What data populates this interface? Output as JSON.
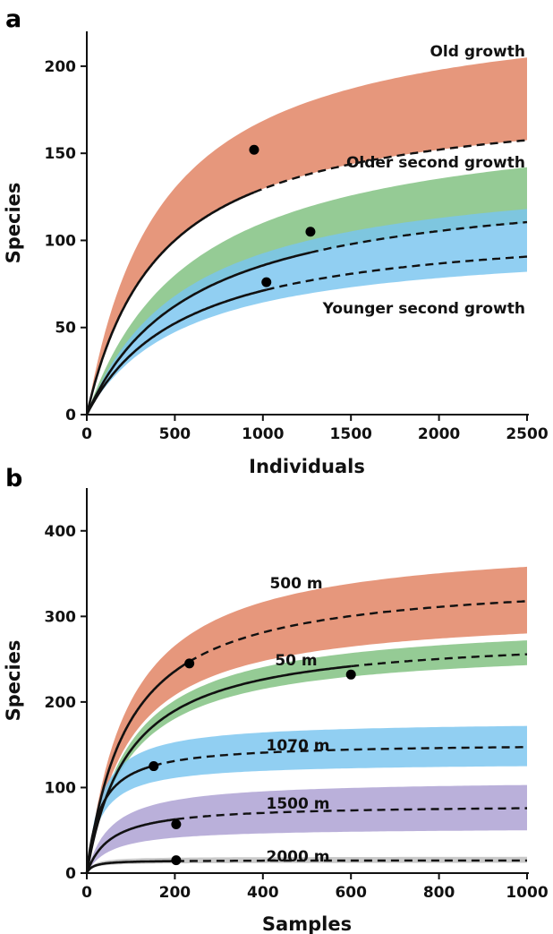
{
  "chart_data": [
    {
      "panel": "a",
      "type": "line",
      "xlabel": "Individuals",
      "ylabel": "Species",
      "xlim": [
        0,
        2500
      ],
      "ylim": [
        0,
        220
      ],
      "xticks": [
        0,
        500,
        1000,
        1500,
        2000,
        2500
      ],
      "yticks": [
        0,
        50,
        100,
        150,
        200
      ],
      "grid": false,
      "series": [
        {
          "name": "Old growth",
          "color": "#e0805f",
          "band_color": "#e0805f",
          "asymptote": 184,
          "k": 420,
          "observed": [
            950,
            152
          ],
          "band": {
            "lower_end": 163,
            "upper_end": 205
          }
        },
        {
          "name": "Older second growth",
          "color": "#7ec07e",
          "band_color": "#7ec07e",
          "asymptote": 137,
          "k": 600,
          "observed": [
            1270,
            105
          ],
          "band": {
            "lower_end": 110,
            "upper_end": 142
          }
        },
        {
          "name": "Younger second growth",
          "color": "#79c4ef",
          "band_color": "#79c4ef",
          "asymptote": 111,
          "k": 560,
          "observed": [
            1020,
            76
          ],
          "band": {
            "lower_end": 82,
            "upper_end": 118
          }
        }
      ]
    },
    {
      "panel": "b",
      "type": "line",
      "xlabel": "Samples",
      "ylabel": "Species",
      "xlim": [
        0,
        1000
      ],
      "ylim": [
        0,
        450
      ],
      "xticks": [
        0,
        200,
        400,
        600,
        800,
        1000
      ],
      "yticks": [
        0,
        100,
        200,
        300,
        400
      ],
      "grid": false,
      "series": [
        {
          "name": "500 m",
          "color": "#e0805f",
          "band_color": "#e0805f",
          "asymptote": 348,
          "k": 95,
          "observed": [
            233,
            245
          ],
          "band": {
            "lower_end": 280,
            "upper_end": 358
          }
        },
        {
          "name": "50 m",
          "color": "#7ec07e",
          "band_color": "#7ec07e",
          "asymptote": 280,
          "k": 95,
          "observed": [
            600,
            232
          ],
          "band": {
            "lower_end": 243,
            "upper_end": 272
          }
        },
        {
          "name": "1070 m",
          "color": "#79c4ef",
          "band_color": "#79c4ef",
          "asymptote": 152,
          "k": 32,
          "observed": [
            152,
            125
          ],
          "band": {
            "lower_end": 125,
            "upper_end": 172
          }
        },
        {
          "name": "1500 m",
          "color": "#ab9fd2",
          "band_color": "#ab9fd2",
          "asymptote": 80,
          "k": 55,
          "observed": [
            203,
            57
          ],
          "band": {
            "lower_end": 50,
            "upper_end": 103
          }
        },
        {
          "name": "2000 m",
          "color": "#bdbdbd",
          "band_color": "#bdbdbd",
          "asymptote": 15,
          "k": 14,
          "observed": [
            203,
            15
          ],
          "band": {
            "lower_end": 12,
            "upper_end": 19
          }
        }
      ]
    }
  ]
}
